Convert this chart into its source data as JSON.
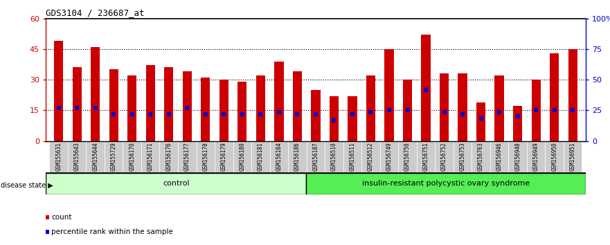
{
  "title": "GDS3104 / 236687_at",
  "samples": [
    "GSM155631",
    "GSM155643",
    "GSM155644",
    "GSM155729",
    "GSM156170",
    "GSM156171",
    "GSM156176",
    "GSM156177",
    "GSM156178",
    "GSM156179",
    "GSM156180",
    "GSM156181",
    "GSM156184",
    "GSM156186",
    "GSM156187",
    "GSM156510",
    "GSM156511",
    "GSM156512",
    "GSM156749",
    "GSM156750",
    "GSM156751",
    "GSM156752",
    "GSM156753",
    "GSM156763",
    "GSM156946",
    "GSM156948",
    "GSM156949",
    "GSM156950",
    "GSM156951"
  ],
  "counts": [
    49,
    36,
    46,
    35,
    32,
    37,
    36,
    34,
    31,
    30,
    29,
    32,
    39,
    34,
    25,
    22,
    22,
    32,
    45,
    30,
    52,
    33,
    33,
    19,
    32,
    17,
    30,
    43,
    45
  ],
  "percentile_ranks_left": [
    16,
    16,
    16,
    13,
    13,
    13,
    13,
    16,
    13,
    13,
    13,
    13,
    14,
    13,
    13,
    10,
    13,
    14,
    15,
    15,
    25,
    14,
    13,
    11,
    14,
    12,
    15,
    15,
    15
  ],
  "control_count": 14,
  "control_label": "control",
  "disease_label": "insulin-resistant polycystic ovary syndrome",
  "disease_state_label": "disease state",
  "bar_color": "#cc0000",
  "dot_color": "#0000cc",
  "left_axis_color": "#cc0000",
  "right_axis_color": "#0000cc",
  "left_ylim": [
    0,
    60
  ],
  "right_ylim": [
    0,
    100
  ],
  "left_yticks": [
    0,
    15,
    30,
    45,
    60
  ],
  "right_yticks": [
    0,
    25,
    50,
    75,
    100
  ],
  "right_yticklabels": [
    "0",
    "25",
    "50",
    "75",
    "100%"
  ],
  "dotted_lines": [
    15,
    30,
    45
  ],
  "bg_color": "#ffffff",
  "control_bg": "#ccffcc",
  "disease_bg": "#55ee55",
  "xtick_bg": "#cccccc",
  "bar_width": 0.5
}
